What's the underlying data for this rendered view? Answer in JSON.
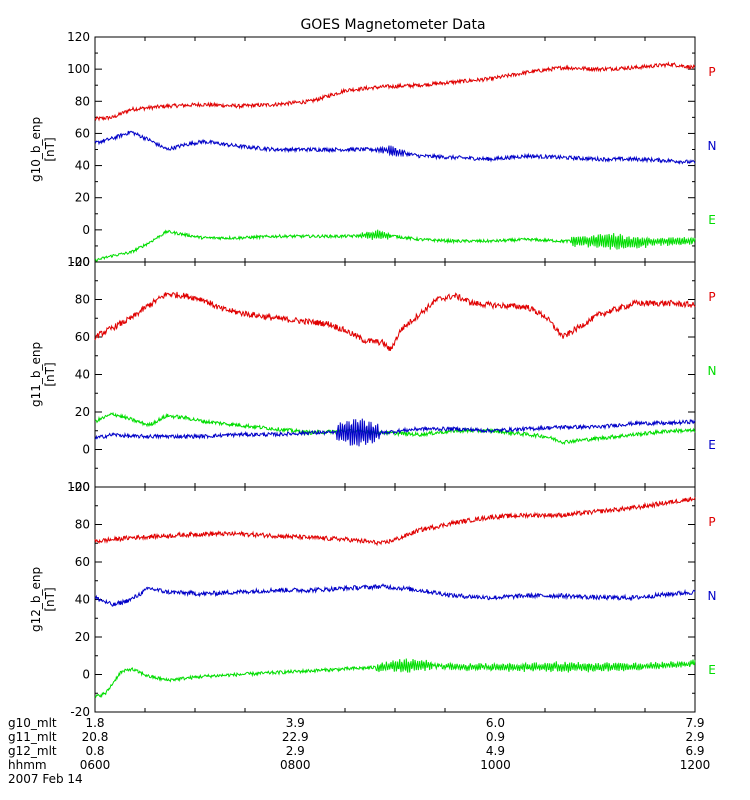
{
  "chart_data": {
    "type": "line",
    "title": "GOES Magnetometer Data",
    "panels": [
      {
        "ylabel": "g10_b_enp",
        "yunit": "[nT]",
        "ylim": [
          -20,
          120
        ],
        "yticks": [
          -20,
          0,
          20,
          40,
          60,
          80,
          100,
          120
        ],
        "series": [
          {
            "name": "P",
            "color": "#e00000",
            "keypoints": [
              [
                0,
                69
              ],
              [
                0.25,
                70
              ],
              [
                0.5,
                75
              ],
              [
                0.75,
                76
              ],
              [
                1,
                77
              ],
              [
                1.5,
                78
              ],
              [
                2,
                77
              ],
              [
                2.5,
                78
              ],
              [
                3,
                80
              ],
              [
                3.5,
                87
              ],
              [
                4,
                89
              ],
              [
                4.5,
                90
              ],
              [
                5,
                92
              ],
              [
                5.5,
                94
              ],
              [
                6,
                98
              ],
              [
                6.5,
                101
              ],
              [
                7,
                100
              ],
              [
                7.5,
                101
              ],
              [
                8,
                103
              ],
              [
                8.33,
                101
              ]
            ],
            "noise": 1.2,
            "osc": []
          },
          {
            "name": "N",
            "color": "#0000c8",
            "keypoints": [
              [
                0,
                54
              ],
              [
                0.25,
                57
              ],
              [
                0.5,
                61
              ],
              [
                0.75,
                56
              ],
              [
                1,
                50
              ],
              [
                1.25,
                53
              ],
              [
                1.5,
                55
              ],
              [
                2,
                52
              ],
              [
                2.5,
                50
              ],
              [
                3,
                50
              ],
              [
                3.5,
                50
              ],
              [
                4,
                50
              ],
              [
                4.5,
                46
              ],
              [
                5,
                45
              ],
              [
                5.5,
                44
              ],
              [
                6,
                46
              ],
              [
                6.5,
                45
              ],
              [
                7,
                44
              ],
              [
                7.5,
                44
              ],
              [
                8,
                43
              ],
              [
                8.33,
                42
              ]
            ],
            "noise": 1.2,
            "osc": [
              [
                3.9,
                4.3,
                2.5,
                1.0
              ]
            ]
          },
          {
            "name": "E",
            "color": "#00dd00",
            "keypoints": [
              [
                0,
                -19
              ],
              [
                0.25,
                -16
              ],
              [
                0.5,
                -14
              ],
              [
                0.75,
                -8
              ],
              [
                1,
                -1
              ],
              [
                1.25,
                -3
              ],
              [
                1.5,
                -5
              ],
              [
                2,
                -5
              ],
              [
                2.5,
                -4
              ],
              [
                3,
                -4
              ],
              [
                3.5,
                -4
              ],
              [
                4,
                -3
              ],
              [
                4.5,
                -6
              ],
              [
                5,
                -7
              ],
              [
                5.5,
                -7
              ],
              [
                6,
                -6
              ],
              [
                6.5,
                -7
              ],
              [
                7,
                -7
              ],
              [
                7.5,
                -8
              ],
              [
                8,
                -7
              ],
              [
                8.33,
                -7
              ]
            ],
            "noise": 0.9,
            "osc": [
              [
                3.7,
                4.1,
                3,
                1.2
              ],
              [
                6.6,
                7.7,
                5,
                1.0
              ],
              [
                7.7,
                8.33,
                2.5,
                1.0
              ]
            ]
          }
        ]
      },
      {
        "ylabel": "g11_b_enp",
        "yunit": "[nT]",
        "ylim": [
          -20,
          100
        ],
        "yticks": [
          -20,
          0,
          20,
          40,
          60,
          80,
          100
        ],
        "series": [
          {
            "name": "P",
            "color": "#e00000",
            "keypoints": [
              [
                0,
                60
              ],
              [
                0.25,
                65
              ],
              [
                0.5,
                70
              ],
              [
                0.75,
                77
              ],
              [
                1,
                83
              ],
              [
                1.25,
                82
              ],
              [
                1.5,
                80
              ],
              [
                1.75,
                75
              ],
              [
                2,
                73
              ],
              [
                2.5,
                70
              ],
              [
                3,
                68
              ],
              [
                3.25,
                67
              ],
              [
                3.5,
                63
              ],
              [
                3.75,
                58
              ],
              [
                4,
                57
              ],
              [
                4.1,
                53
              ],
              [
                4.25,
                64
              ],
              [
                4.5,
                72
              ],
              [
                4.75,
                80
              ],
              [
                5,
                82
              ],
              [
                5.25,
                78
              ],
              [
                5.5,
                77
              ],
              [
                6,
                76
              ],
              [
                6.25,
                71
              ],
              [
                6.5,
                60
              ],
              [
                6.75,
                66
              ],
              [
                7,
                72
              ],
              [
                7.5,
                78
              ],
              [
                8,
                78
              ],
              [
                8.33,
                77
              ]
            ],
            "noise": 1.6,
            "osc": []
          },
          {
            "name": "N",
            "color": "#00dd00",
            "keypoints": [
              [
                0,
                15
              ],
              [
                0.25,
                19
              ],
              [
                0.5,
                16
              ],
              [
                0.75,
                13
              ],
              [
                1,
                18
              ],
              [
                1.25,
                17
              ],
              [
                1.5,
                15
              ],
              [
                2,
                13
              ],
              [
                2.5,
                11
              ],
              [
                3,
                9
              ],
              [
                3.5,
                10
              ],
              [
                4,
                9
              ],
              [
                4.5,
                8
              ],
              [
                5,
                10
              ],
              [
                5.5,
                10
              ],
              [
                6,
                8
              ],
              [
                6.25,
                7
              ],
              [
                6.5,
                4
              ],
              [
                7,
                6
              ],
              [
                7.5,
                8
              ],
              [
                8,
                10
              ],
              [
                8.33,
                10
              ]
            ],
            "noise": 1.0,
            "osc": []
          },
          {
            "name": "E",
            "color": "#0000c8",
            "keypoints": [
              [
                0,
                6
              ],
              [
                0.25,
                8
              ],
              [
                0.5,
                7
              ],
              [
                1,
                7
              ],
              [
                1.5,
                7
              ],
              [
                2,
                8
              ],
              [
                2.5,
                8
              ],
              [
                3,
                9
              ],
              [
                3.5,
                9
              ],
              [
                4,
                9
              ],
              [
                4.5,
                11
              ],
              [
                5,
                11
              ],
              [
                5.5,
                10
              ],
              [
                6,
                11
              ],
              [
                6.5,
                12
              ],
              [
                7,
                12
              ],
              [
                7.5,
                14
              ],
              [
                8,
                14
              ],
              [
                8.33,
                15
              ]
            ],
            "noise": 1.0,
            "osc": [
              [
                3.35,
                3.95,
                8,
                1.0
              ]
            ]
          }
        ]
      },
      {
        "ylabel": "g12_b_enp",
        "yunit": "[nT]",
        "ylim": [
          -20,
          100
        ],
        "yticks": [
          -20,
          0,
          20,
          40,
          60,
          80,
          100
        ],
        "series": [
          {
            "name": "P",
            "color": "#e00000",
            "keypoints": [
              [
                0,
                71
              ],
              [
                0.25,
                72
              ],
              [
                0.5,
                73
              ],
              [
                1,
                74
              ],
              [
                1.5,
                75
              ],
              [
                2,
                75
              ],
              [
                2.5,
                74
              ],
              [
                3,
                73
              ],
              [
                3.5,
                72
              ],
              [
                4,
                70
              ],
              [
                4.25,
                73
              ],
              [
                4.5,
                77
              ],
              [
                5,
                81
              ],
              [
                5.5,
                84
              ],
              [
                6,
                85
              ],
              [
                6.5,
                85
              ],
              [
                7,
                87
              ],
              [
                7.5,
                89
              ],
              [
                8,
                92
              ],
              [
                8.33,
                94
              ]
            ],
            "noise": 1.2,
            "osc": []
          },
          {
            "name": "N",
            "color": "#0000c8",
            "keypoints": [
              [
                0,
                41
              ],
              [
                0.25,
                37
              ],
              [
                0.5,
                40
              ],
              [
                0.75,
                46
              ],
              [
                1,
                44
              ],
              [
                1.5,
                43
              ],
              [
                2,
                44
              ],
              [
                2.5,
                45
              ],
              [
                3,
                45
              ],
              [
                3.5,
                46
              ],
              [
                4,
                47
              ],
              [
                4.5,
                45
              ],
              [
                5,
                42
              ],
              [
                5.5,
                41
              ],
              [
                6,
                42
              ],
              [
                6.5,
                42
              ],
              [
                7,
                41
              ],
              [
                7.5,
                41
              ],
              [
                8,
                43
              ],
              [
                8.33,
                44
              ]
            ],
            "noise": 1.2,
            "osc": []
          },
          {
            "name": "E",
            "color": "#00dd00",
            "keypoints": [
              [
                0,
                -12
              ],
              [
                0.15,
                -10
              ],
              [
                0.35,
                1
              ],
              [
                0.5,
                3
              ],
              [
                0.75,
                -1
              ],
              [
                1,
                -3
              ],
              [
                1.5,
                -1
              ],
              [
                2,
                0
              ],
              [
                2.5,
                1
              ],
              [
                3,
                2
              ],
              [
                3.5,
                3
              ],
              [
                4,
                4
              ],
              [
                4.5,
                5
              ],
              [
                5,
                4
              ],
              [
                5.5,
                4
              ],
              [
                6,
                4
              ],
              [
                6.5,
                4
              ],
              [
                7,
                4
              ],
              [
                7.5,
                4
              ],
              [
                8,
                5
              ],
              [
                8.33,
                6
              ]
            ],
            "noise": 0.9,
            "osc": [
              [
                3.9,
                4.7,
                3.5,
                1.0
              ],
              [
                4.7,
                8.33,
                2.2,
                1.0
              ]
            ]
          }
        ]
      }
    ],
    "time_range_hours": [
      0,
      8.33
    ],
    "bottom_axis": {
      "row_labels": [
        "g10_mlt",
        "g11_mlt",
        "g12_mlt",
        "hhmm",
        "2007 Feb 14"
      ],
      "ticks": [
        {
          "t": 0,
          "values": [
            "1.8",
            "20.8",
            "0.8",
            "0600"
          ]
        },
        {
          "t": 2.78,
          "values": [
            "3.9",
            "22.9",
            "2.9",
            "0800"
          ]
        },
        {
          "t": 5.56,
          "values": [
            "6.0",
            "0.9",
            "4.9",
            "1000"
          ]
        },
        {
          "t": 8.33,
          "values": [
            "7.9",
            "2.9",
            "6.9",
            "1200"
          ]
        }
      ]
    }
  }
}
